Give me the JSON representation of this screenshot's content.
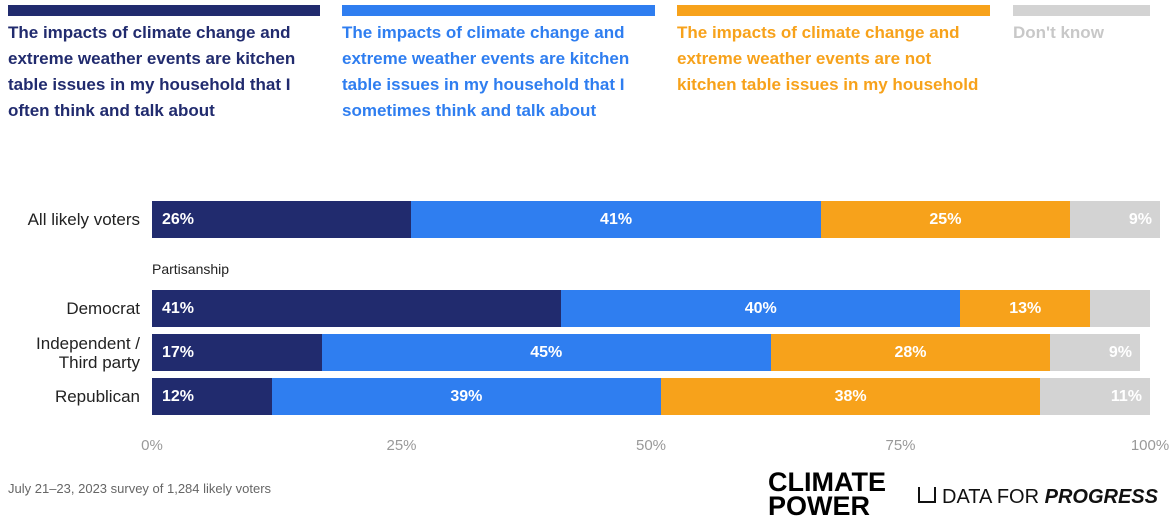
{
  "chart_data": {
    "type": "stacked-barh",
    "group_label": "Partisanship",
    "categories": [
      "All likely voters",
      "Democrat",
      "Independent / Third party",
      "Republican"
    ],
    "series": [
      {
        "name": "The impacts of climate change and extreme weather events are kitchen table issues in my household that I often think and talk about",
        "color": "#212b6e",
        "values": [
          26,
          41,
          17,
          12
        ],
        "value_labels": [
          "26%",
          "41%",
          "17%",
          "12%"
        ]
      },
      {
        "name": "The impacts of climate change and extreme weather events are kitchen table issues in my household that I sometimes think and talk about",
        "color": "#2f7ef0",
        "values": [
          41,
          40,
          45,
          39
        ],
        "value_labels": [
          "41%",
          "40%",
          "45%",
          "39%"
        ]
      },
      {
        "name": "The impacts of climate change and extreme weather events are not kitchen table issues in my household",
        "color": "#f7a21b",
        "values": [
          25,
          13,
          28,
          38
        ],
        "value_labels": [
          "25%",
          "13%",
          "28%",
          "38%"
        ]
      },
      {
        "name": "Don't know",
        "color": "#d3d3d3",
        "values": [
          9,
          6,
          9,
          11
        ],
        "value_labels": [
          "9%",
          null,
          "9%",
          "11%"
        ]
      }
    ],
    "xlim": [
      0,
      100
    ],
    "xticks": [
      {
        "value": 0,
        "label": "0%"
      },
      {
        "value": 25,
        "label": "25%"
      },
      {
        "value": 50,
        "label": "50%"
      },
      {
        "value": 75,
        "label": "75%"
      },
      {
        "value": 100,
        "label": "100%"
      }
    ],
    "source": "July 21–23, 2023 survey of 1,284 likely voters",
    "logos": [
      "CLIMATE",
      "POWER",
      "DATA FOR",
      "PROGRESS"
    ]
  }
}
